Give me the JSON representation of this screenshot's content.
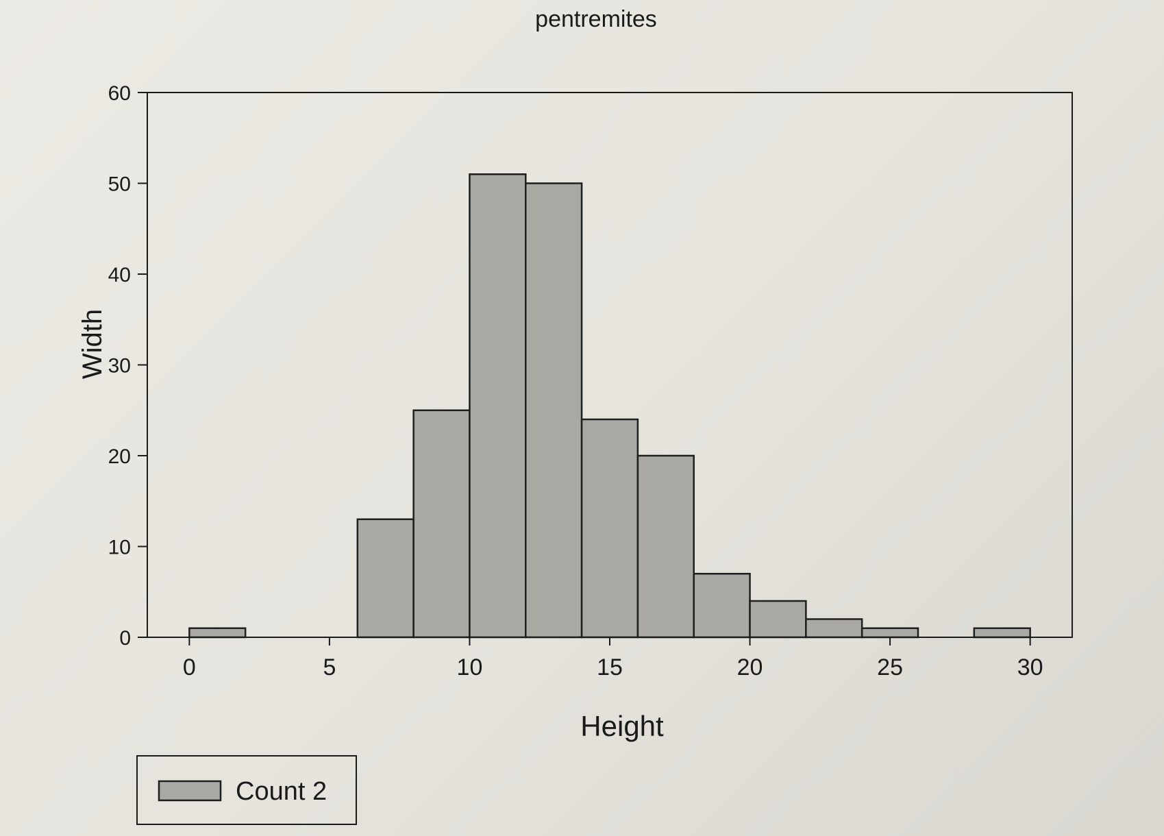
{
  "chart_data": {
    "type": "bar",
    "title": "pentremites",
    "xlabel": "Height",
    "ylabel": "Width",
    "xlim": [
      -1.5,
      31.5
    ],
    "ylim": [
      0,
      60
    ],
    "xticks": [
      0,
      5,
      10,
      15,
      20,
      25,
      30
    ],
    "yticks": [
      0,
      10,
      20,
      30,
      40,
      50,
      60
    ],
    "bin_edges": [
      0,
      2,
      4,
      6,
      8,
      10,
      12,
      14,
      16,
      18,
      20,
      22,
      24,
      26,
      28,
      30
    ],
    "series": [
      {
        "name": "Count 2",
        "values": [
          1,
          0,
          0,
          13,
          25,
          51,
          50,
          24,
          20,
          7,
          4,
          2,
          1,
          0,
          1
        ]
      }
    ],
    "grid": false,
    "legend_position": "bottom-left",
    "colors": {
      "bar_fill": "#a9a8a2",
      "bar_stroke": "#1f1f1f",
      "axis": "#1a1a1a"
    }
  }
}
